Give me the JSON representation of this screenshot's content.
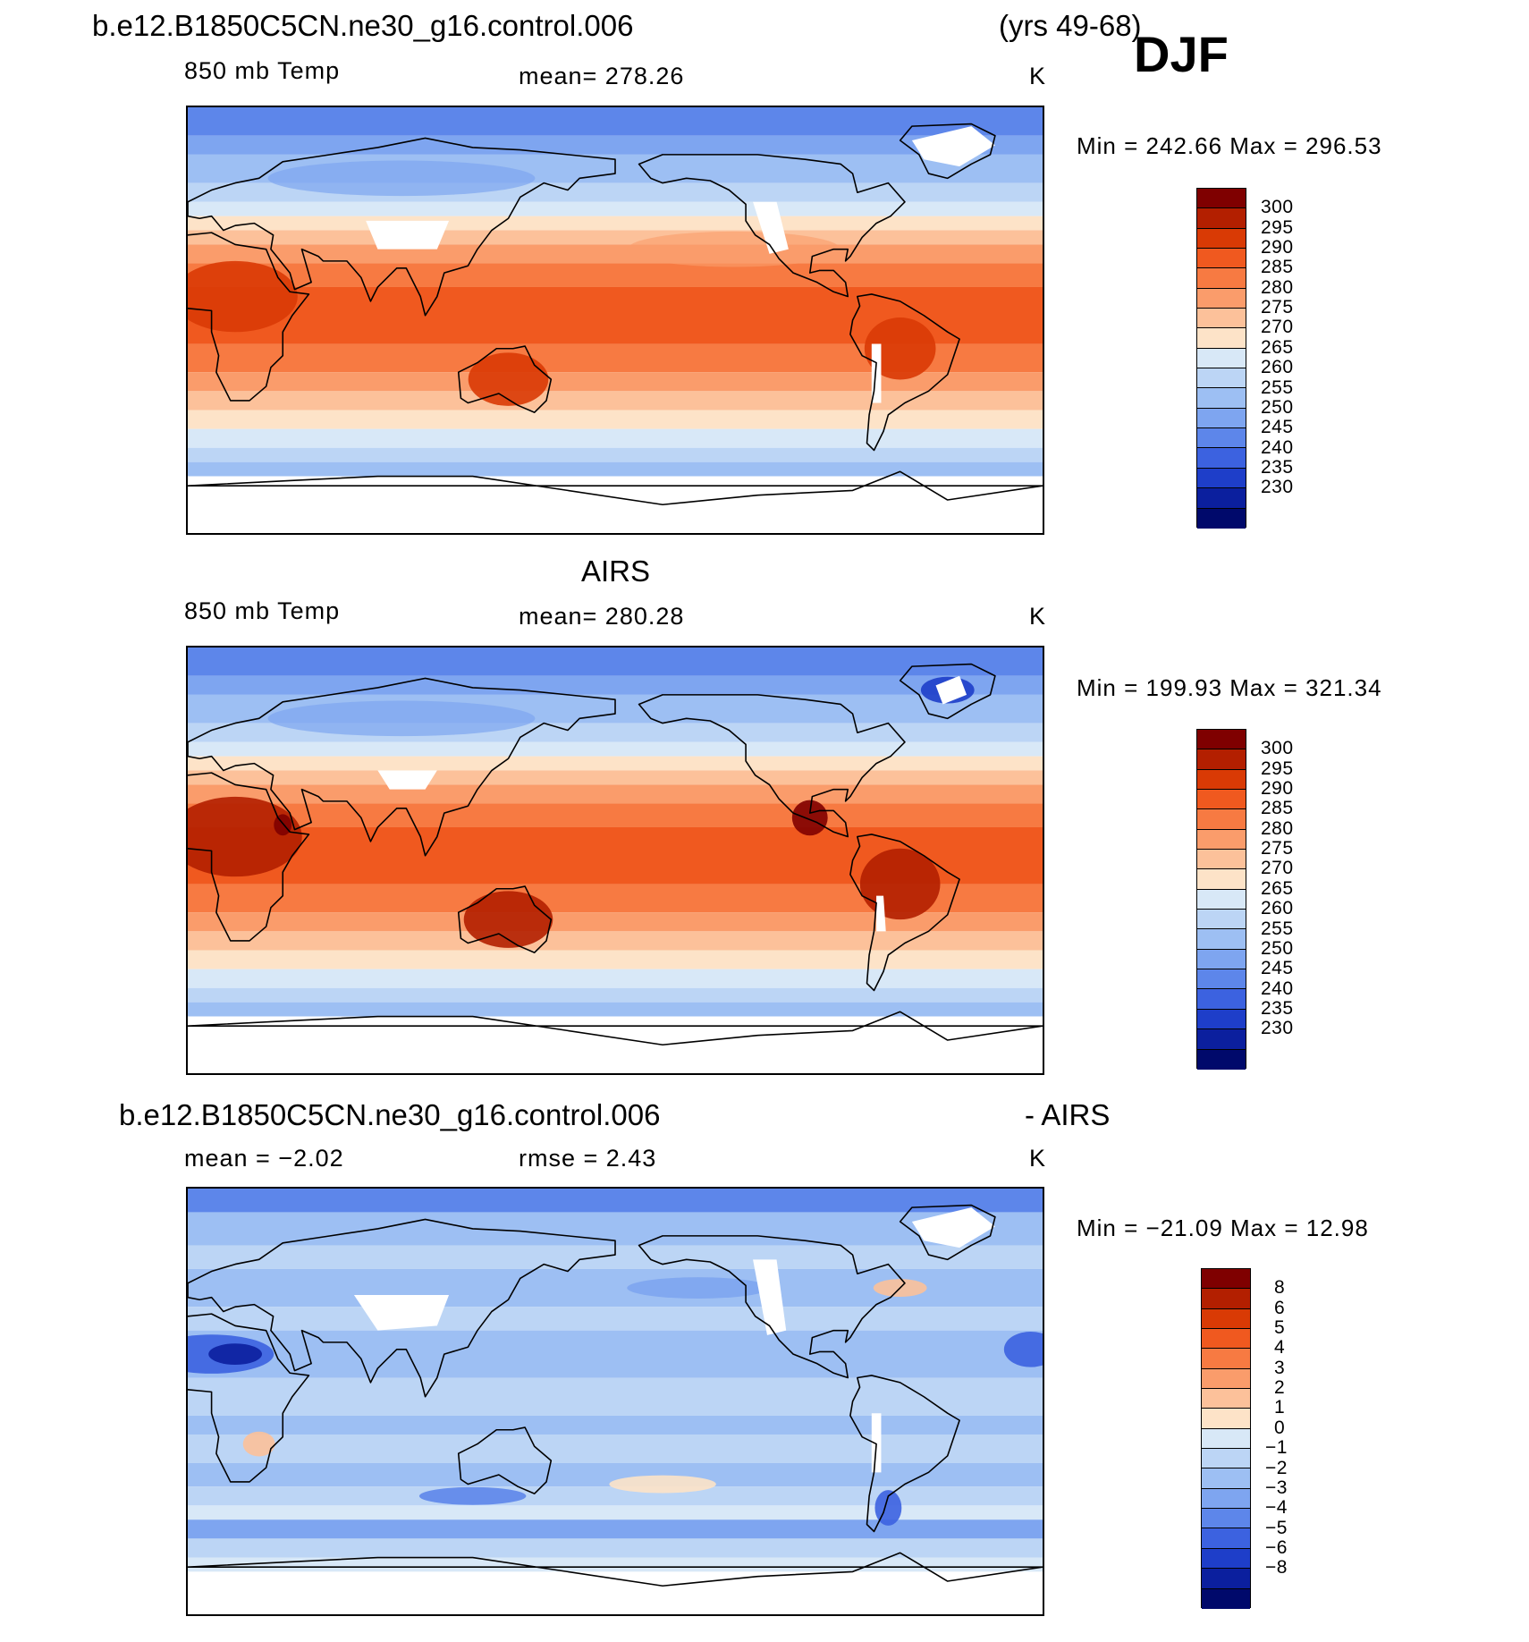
{
  "header": {
    "case_title": "b.e12.B1850C5CN.ne30_g16.control.006",
    "years": "(yrs 49-68)",
    "season": "DJF"
  },
  "panels": [
    {
      "id": "model",
      "title": "",
      "left_label": "850 mb Temp",
      "center_label": "mean=  278.26",
      "right_label": "K",
      "minmax": "Min  =  242.66  Max  =  296.53"
    },
    {
      "id": "obs",
      "title": "AIRS",
      "left_label": "850 mb Temp",
      "center_label": "mean=  280.28",
      "right_label": "K",
      "minmax": "Min  =  199.93  Max  =  321.34"
    },
    {
      "id": "diff",
      "title_left": "b.e12.B1850C5CN.ne30_g16.control.006",
      "title_right": "- AIRS",
      "left_label": "mean  =    −2.02",
      "center_label": "rmse  =     2.43",
      "right_label": "K",
      "minmax": "Min  =  −21.09  Max  =    12.98"
    }
  ],
  "chart_data": [
    {
      "type": "heatmap",
      "title": "850 mb Temp",
      "units": "K",
      "mean": 278.26,
      "min": 242.66,
      "max": 296.53,
      "colorbar_levels": [
        "300",
        "295",
        "290",
        "285",
        "280",
        "275",
        "270",
        "265",
        "260",
        "255",
        "250",
        "245",
        "240",
        "235",
        "230"
      ],
      "colorbar_colors": [
        "#7f0000",
        "#b31f00",
        "#d93a05",
        "#f0591f",
        "#f77a42",
        "#fa9c6b",
        "#fcc19a",
        "#fde3c8",
        "#d8e8f7",
        "#bcd5f5",
        "#9dbff3",
        "#7ea5f0",
        "#5d86ea",
        "#3c62e0",
        "#1e3ec9",
        "#0b1f9e",
        "#00096b"
      ],
      "region_temps_K": {
        "tropics": 290,
        "subtropics": 285,
        "midlat_north": 262,
        "midlat_south": 275,
        "polar_north": 248,
        "polar_south": 255
      }
    },
    {
      "type": "heatmap",
      "title": "850 mb Temp",
      "units": "K",
      "mean": 280.28,
      "min": 199.93,
      "max": 321.34,
      "colorbar_levels": [
        "300",
        "295",
        "290",
        "285",
        "280",
        "275",
        "270",
        "265",
        "260",
        "255",
        "250",
        "245",
        "240",
        "235",
        "230"
      ],
      "colorbar_colors": [
        "#7f0000",
        "#b31f00",
        "#d93a05",
        "#f0591f",
        "#f77a42",
        "#fa9c6b",
        "#fcc19a",
        "#fde3c8",
        "#d8e8f7",
        "#bcd5f5",
        "#9dbff3",
        "#7ea5f0",
        "#5d86ea",
        "#3c62e0",
        "#1e3ec9",
        "#0b1f9e",
        "#00096b"
      ],
      "region_temps_K": {
        "tropics": 292,
        "subtropics": 287,
        "midlat_north": 263,
        "midlat_south": 276,
        "polar_north": 250,
        "polar_south": 257
      }
    },
    {
      "type": "heatmap",
      "title": "b.e12.B1850C5CN.ne30_g16.control.006 - AIRS",
      "units": "K",
      "mean": -2.02,
      "rmse": 2.43,
      "min": -21.09,
      "max": 12.98,
      "colorbar_levels": [
        "8",
        "6",
        "5",
        "4",
        "3",
        "2",
        "1",
        "0",
        "−1",
        "−2",
        "−3",
        "−4",
        "−5",
        "−6",
        "−8"
      ],
      "colorbar_colors": [
        "#7f0000",
        "#b31f00",
        "#d93a05",
        "#f0591f",
        "#f77a42",
        "#fa9c6b",
        "#fcc19a",
        "#fde3c8",
        "#d8e8f7",
        "#bcd5f5",
        "#9dbff3",
        "#7ea5f0",
        "#5d86ea",
        "#3c62e0",
        "#1e3ec9",
        "#0b1f9e",
        "#00096b"
      ]
    }
  ]
}
